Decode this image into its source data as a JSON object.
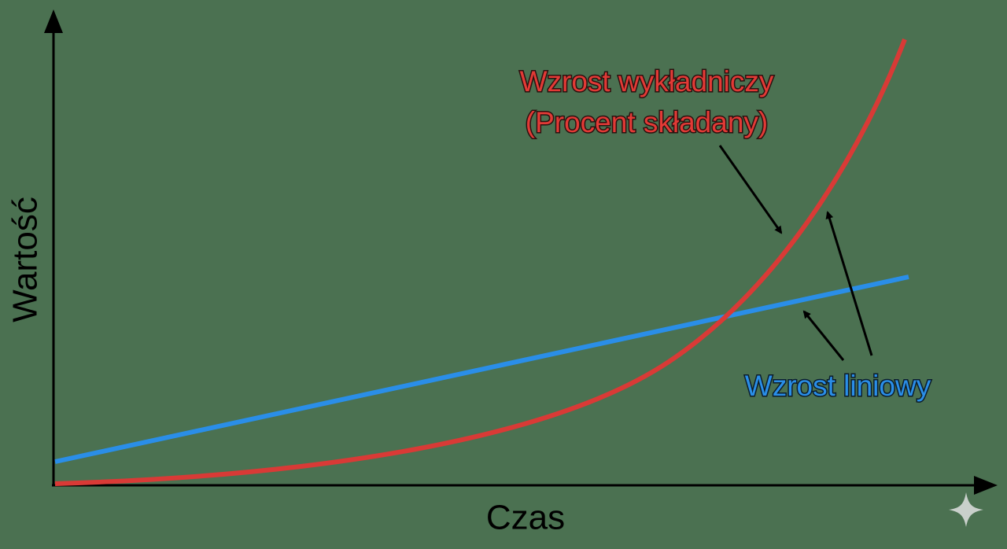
{
  "axes": {
    "y_label": "Wartość",
    "x_label": "Czas"
  },
  "annotations": {
    "exponential": [
      "Wzrost wykładniczy",
      "(Procent składany)"
    ],
    "linear": "Wzrost liniowy"
  }
}
